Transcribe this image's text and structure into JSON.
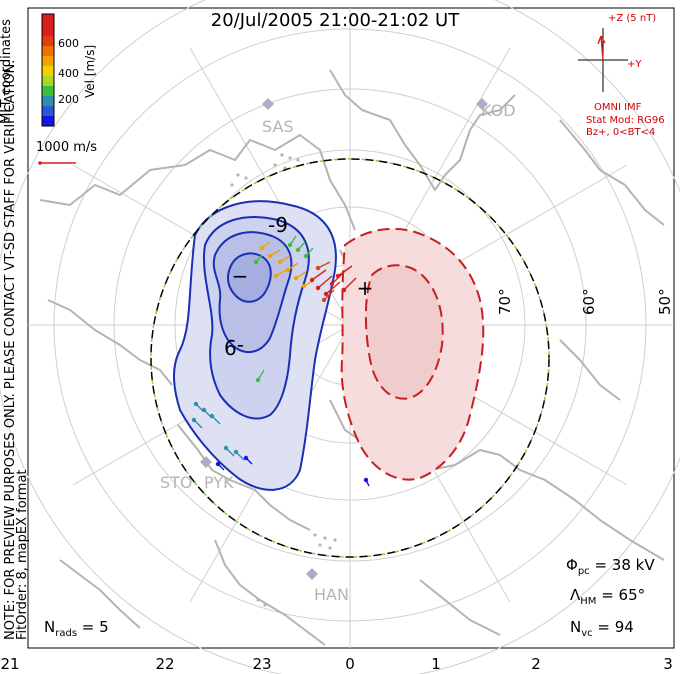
{
  "title": "20/Jul/2005 21:00-21:02 UT",
  "side_note": {
    "line1": "NOTE: FOR PREVIEW PURPOSES ONLY. PLEASE CONTACT VT-SD STAFF FOR VERIFICATION.",
    "line2": "FitOrder: 8, mapEX format"
  },
  "velocity_scale": {
    "title": "Vel [m/s]",
    "coordinates_label": "MLT coordinates",
    "ticks": [
      "600",
      "400",
      "200"
    ],
    "colors": [
      "#1414e6",
      "#2a5bd6",
      "#2e8fae",
      "#3cc03c",
      "#a8d820",
      "#f0d000",
      "#f5a000",
      "#f07000",
      "#e63c10",
      "#dc1e1e"
    ]
  },
  "ref_vector": {
    "label": "1000 m/s"
  },
  "imf": {
    "z_label": "+Z (5 nT)",
    "y_label": "+Y",
    "caption": "OMNI IMF",
    "model": "Stat Mod: RG96",
    "condition": "Bz+, 0<BT<4"
  },
  "stations": [
    {
      "name": "SAS"
    },
    {
      "name": "KOD"
    },
    {
      "name": "STO"
    },
    {
      "name": "PYK"
    },
    {
      "name": "HAN"
    }
  ],
  "latitude_labels": [
    "70°",
    "60°",
    "50°"
  ],
  "contour_labels": {
    "neg": "-9"
  },
  "centers": {
    "min": "−",
    "max": "+"
  },
  "stats": {
    "phi": {
      "symbol": "Φ",
      "sub": "pc",
      "value": "38 kV"
    },
    "lambda": {
      "symbol": "Λ",
      "sub": "HM",
      "value": "65°"
    },
    "nvc": {
      "symbol": "N",
      "sub": "vc",
      "value": "94"
    }
  },
  "nrads": {
    "symbol": "N",
    "sub": "rads",
    "value": "5"
  },
  "mlt_axis": [
    "21",
    "22",
    "23",
    "0",
    "1",
    "2",
    "3"
  ],
  "colors": {
    "negative_cell": "#1a2fb4",
    "positive_cell": "#c81e1e",
    "heppner_boundary": "#8ad04a",
    "coast": "#b4b4b4"
  }
}
